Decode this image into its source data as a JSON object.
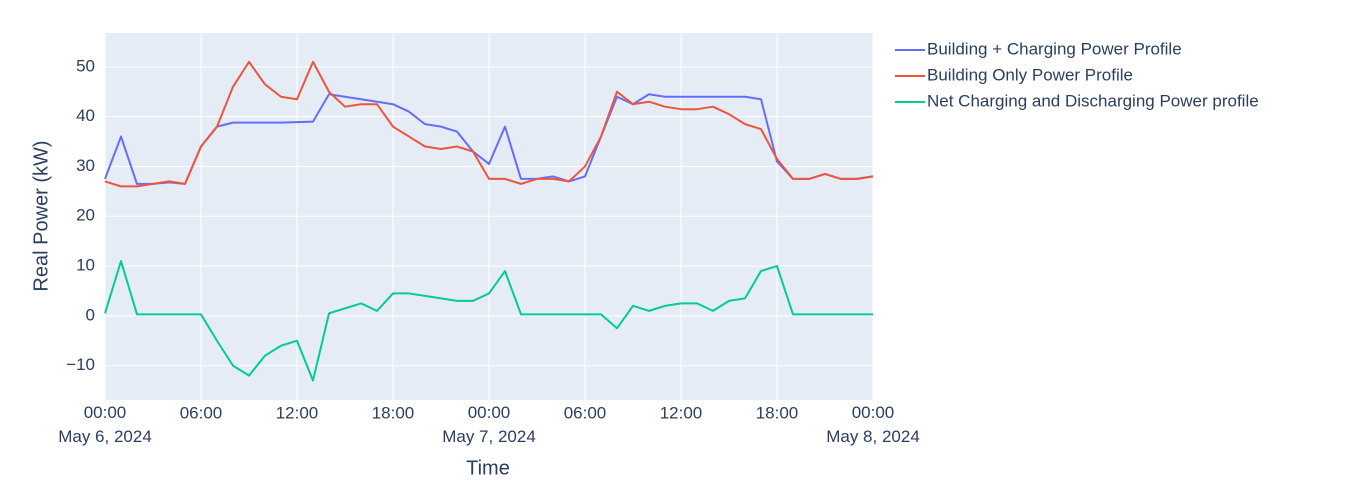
{
  "chart_data": {
    "type": "line",
    "x_title": "Time",
    "y_title": "Real Power (kW)",
    "x": [
      "2024-05-06T00:00",
      "2024-05-06T01:00",
      "2024-05-06T02:00",
      "2024-05-06T03:00",
      "2024-05-06T04:00",
      "2024-05-06T05:00",
      "2024-05-06T06:00",
      "2024-05-06T07:00",
      "2024-05-06T08:00",
      "2024-05-06T09:00",
      "2024-05-06T10:00",
      "2024-05-06T11:00",
      "2024-05-06T12:00",
      "2024-05-06T13:00",
      "2024-05-06T14:00",
      "2024-05-06T15:00",
      "2024-05-06T16:00",
      "2024-05-06T17:00",
      "2024-05-06T18:00",
      "2024-05-06T19:00",
      "2024-05-06T20:00",
      "2024-05-06T21:00",
      "2024-05-06T22:00",
      "2024-05-06T23:00",
      "2024-05-07T00:00",
      "2024-05-07T01:00",
      "2024-05-07T02:00",
      "2024-05-07T03:00",
      "2024-05-07T04:00",
      "2024-05-07T05:00",
      "2024-05-07T06:00",
      "2024-05-07T07:00",
      "2024-05-07T08:00",
      "2024-05-07T09:00",
      "2024-05-07T10:00",
      "2024-05-07T11:00",
      "2024-05-07T12:00",
      "2024-05-07T13:00",
      "2024-05-07T14:00",
      "2024-05-07T15:00",
      "2024-05-07T16:00",
      "2024-05-07T17:00",
      "2024-05-07T18:00",
      "2024-05-07T19:00",
      "2024-05-07T20:00",
      "2024-05-07T21:00",
      "2024-05-07T22:00",
      "2024-05-07T23:00",
      "2024-05-08T00:00"
    ],
    "series": [
      {
        "name": "Building + Charging Power Profile",
        "color": "#636efa",
        "values": [
          27.5,
          36,
          26.5,
          26.5,
          26.8,
          26.5,
          34,
          38,
          38.8,
          38.8,
          38.8,
          38.8,
          38.9,
          39,
          44.5,
          44,
          43.5,
          43,
          42.5,
          41,
          38.5,
          38,
          37,
          33,
          30.5,
          38,
          27.5,
          27.5,
          28,
          27,
          28,
          36,
          44,
          42.5,
          44.5,
          44,
          44,
          44,
          44,
          44,
          44,
          43.5,
          31,
          27.5,
          27.5,
          28.5,
          27.5,
          27.5,
          28
        ]
      },
      {
        "name": "Building Only Power Profile",
        "color": "#ef553b",
        "values": [
          27,
          26,
          26,
          26.5,
          27,
          26.5,
          34,
          38,
          46,
          51,
          46.5,
          44,
          43.5,
          51,
          45,
          42,
          42.5,
          42.5,
          38,
          36,
          34,
          33.5,
          34,
          33,
          27.5,
          27.5,
          26.5,
          27.5,
          27.5,
          27,
          30,
          36,
          45,
          42.5,
          43,
          42,
          41.5,
          41.5,
          42,
          40.5,
          38.5,
          37.5,
          31.5,
          27.5,
          27.5,
          28.5,
          27.5,
          27.5,
          28
        ]
      },
      {
        "name": "Net Charging and Discharging Power profile",
        "color": "#00cc96",
        "values": [
          0.5,
          11,
          0.3,
          0.3,
          0.3,
          0.3,
          0.3,
          -5,
          -10,
          -12,
          -8,
          -6,
          -5,
          -13,
          0.5,
          1.5,
          2.5,
          1,
          4.5,
          4.5,
          4,
          3.5,
          3,
          3,
          4.5,
          9,
          0.3,
          0.3,
          0.3,
          0.3,
          0.3,
          0.3,
          -2.5,
          2,
          1,
          2,
          2.5,
          2.5,
          1,
          3,
          3.5,
          9,
          10,
          0.3,
          0.3,
          0.3,
          0.3,
          0.3,
          0.3
        ]
      }
    ],
    "xlim": [
      "2024-05-06T00:00",
      "2024-05-08T00:00"
    ],
    "xticks": [
      {
        "value": "2024-05-06T00:00",
        "label": [
          "00:00",
          "May 6, 2024"
        ]
      },
      {
        "value": "2024-05-06T06:00",
        "label": "06:00"
      },
      {
        "value": "2024-05-06T12:00",
        "label": "12:00"
      },
      {
        "value": "2024-05-06T18:00",
        "label": "18:00"
      },
      {
        "value": "2024-05-07T00:00",
        "label": [
          "00:00",
          "May 7, 2024"
        ]
      },
      {
        "value": "2024-05-07T06:00",
        "label": "06:00"
      },
      {
        "value": "2024-05-07T12:00",
        "label": "12:00"
      },
      {
        "value": "2024-05-07T18:00",
        "label": "18:00"
      },
      {
        "value": "2024-05-08T00:00",
        "label": [
          "00:00",
          "May 8, 2024"
        ]
      }
    ],
    "ylim": [
      -16.9,
      56.8
    ],
    "yticks": [
      {
        "value": -10,
        "label": "−10"
      },
      0,
      10,
      20,
      30,
      40,
      50
    ],
    "grid": true
  }
}
